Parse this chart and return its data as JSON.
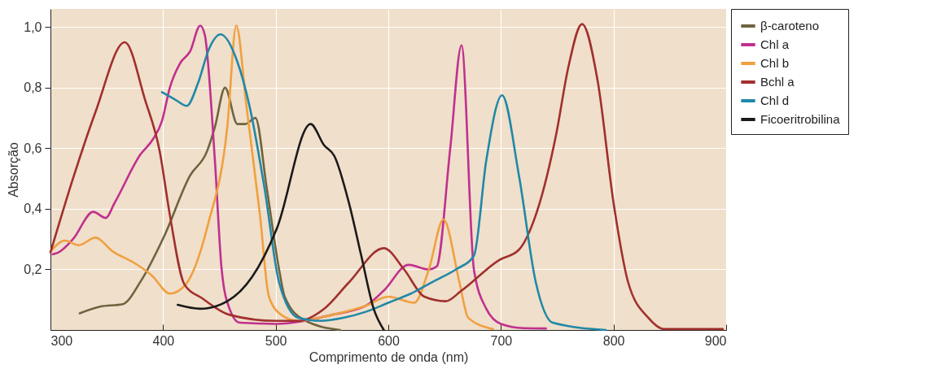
{
  "chart_data": {
    "type": "line",
    "xlabel": "Comprimento de onda (nm)",
    "ylabel": "Absorção",
    "xlim": [
      300,
      900
    ],
    "xticks": [
      300,
      400,
      500,
      600,
      700,
      800,
      900
    ],
    "ylim": [
      0,
      1.06
    ],
    "yticks": [
      {
        "value": 0.2,
        "label": "0,2"
      },
      {
        "value": 0.4,
        "label": "0,4"
      },
      {
        "value": 0.6,
        "label": "0,6"
      },
      {
        "value": 0.8,
        "label": "0,8"
      },
      {
        "value": 1.0,
        "label": "1,0"
      }
    ],
    "grid": true,
    "legend": "right",
    "line_style": "solid",
    "series": [
      {
        "name": "β-caroteno",
        "color": "#6e6440",
        "x": [
          326,
          344,
          364,
          380,
          401,
          424,
          439,
          446,
          455,
          466,
          473,
          482,
          492,
          503,
          508,
          525,
          557
        ],
        "values": [
          0.055,
          0.077,
          0.085,
          0.16,
          0.31,
          0.51,
          0.59,
          0.67,
          0.8,
          0.68,
          0.68,
          0.7,
          0.47,
          0.2,
          0.11,
          0.033,
          0.0
        ]
      },
      {
        "name": "Chl a",
        "color": "#c0308e",
        "x": [
          302,
          307,
          320,
          338,
          349,
          357,
          380,
          391,
          399,
          406,
          415,
          424,
          433,
          437,
          446,
          452,
          459,
          468,
          500,
          550,
          580,
          596,
          618,
          636,
          643,
          655,
          665,
          676,
          687,
          700,
          720,
          740
        ],
        "values": [
          0.25,
          0.256,
          0.3,
          0.39,
          0.37,
          0.42,
          0.58,
          0.63,
          0.69,
          0.8,
          0.88,
          0.92,
          1.005,
          0.975,
          0.56,
          0.2,
          0.07,
          0.024,
          0.02,
          0.05,
          0.08,
          0.13,
          0.215,
          0.2,
          0.21,
          0.6,
          0.94,
          0.2,
          0.07,
          0.02,
          0.006,
          0.005
        ]
      },
      {
        "name": "Chl b",
        "color": "#f0a040",
        "x": [
          300,
          313,
          325,
          340,
          355,
          375,
          390,
          406,
          420,
          440,
          457,
          465,
          474,
          486,
          494,
          505,
          520,
          550,
          580,
          600,
          623,
          636,
          649,
          663,
          671,
          693
        ],
        "values": [
          0.26,
          0.295,
          0.28,
          0.305,
          0.26,
          0.22,
          0.18,
          0.12,
          0.15,
          0.35,
          0.67,
          1.005,
          0.74,
          0.38,
          0.11,
          0.05,
          0.03,
          0.05,
          0.08,
          0.11,
          0.09,
          0.2,
          0.365,
          0.16,
          0.04,
          0.003
        ]
      },
      {
        "name": "Bchl a",
        "color": "#a0302e",
        "x": [
          300,
          320,
          340,
          366,
          384,
          397,
          406,
          419,
          435,
          459,
          500,
          520,
          543,
          565,
          596,
          614,
          632,
          651,
          665,
          698,
          716,
          731,
          749,
          760,
          772,
          786,
          800,
          813,
          831,
          845,
          897
        ],
        "values": [
          0.256,
          0.5,
          0.72,
          0.95,
          0.76,
          0.59,
          0.38,
          0.15,
          0.104,
          0.05,
          0.03,
          0.03,
          0.07,
          0.157,
          0.27,
          0.2,
          0.11,
          0.095,
          0.13,
          0.23,
          0.265,
          0.38,
          0.645,
          0.87,
          1.01,
          0.82,
          0.42,
          0.157,
          0.04,
          0.003,
          0.003
        ]
      },
      {
        "name": "Chl d",
        "color": "#2088a8",
        "x": [
          399,
          411,
          421,
          431,
          441,
          451,
          466,
          477,
          490,
          503,
          520,
          540,
          560,
          580,
          600,
          620,
          640,
          660,
          676,
          687,
          701,
          716,
          731,
          746,
          793
        ],
        "values": [
          0.785,
          0.76,
          0.74,
          0.815,
          0.93,
          0.976,
          0.885,
          0.735,
          0.47,
          0.157,
          0.04,
          0.03,
          0.04,
          0.06,
          0.09,
          0.12,
          0.16,
          0.2,
          0.245,
          0.56,
          0.775,
          0.51,
          0.157,
          0.024,
          0.0
        ]
      },
      {
        "name": "Ficoeritrobilina",
        "color": "#1a1a1a",
        "x": [
          413,
          433,
          457,
          479,
          501,
          531,
          543,
          552,
          565,
          576,
          587,
          596
        ],
        "values": [
          0.083,
          0.07,
          0.095,
          0.175,
          0.335,
          0.68,
          0.61,
          0.575,
          0.42,
          0.245,
          0.07,
          0.0
        ]
      }
    ]
  }
}
